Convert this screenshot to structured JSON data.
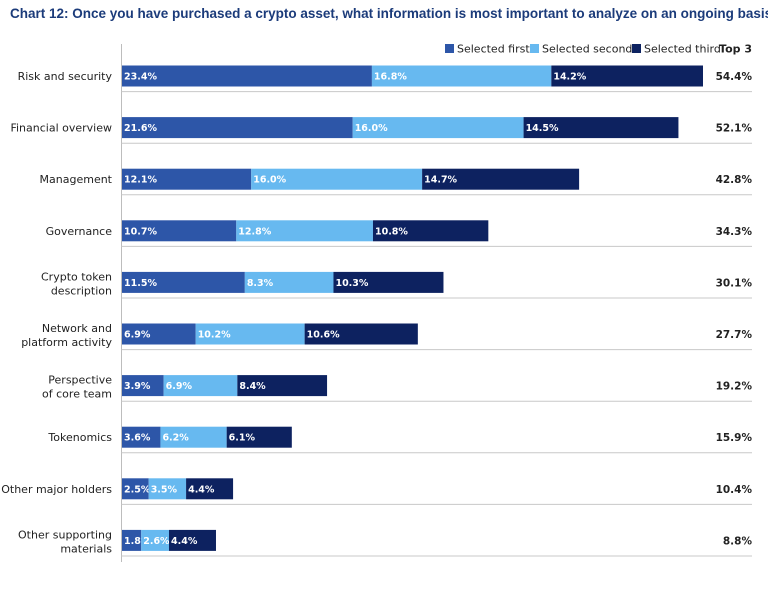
{
  "chart_data": {
    "type": "bar",
    "orientation": "horizontal",
    "stacked": true,
    "title": "Chart 12: Once you have purchased a crypto asset, what information is most important to analyze on an ongoing basis?",
    "categories": [
      [
        "Risk and security"
      ],
      [
        "Financial overview"
      ],
      [
        "Management"
      ],
      [
        "Governance"
      ],
      [
        "Crypto token",
        "description"
      ],
      [
        "Network and",
        "platform activity"
      ],
      [
        "Perspective",
        "of core team"
      ],
      [
        "Tokenomics"
      ],
      [
        "Other major holders"
      ],
      [
        "Other supporting",
        "materials"
      ]
    ],
    "series": [
      {
        "name": "Selected first",
        "color": "#2d56a8",
        "values": [
          23.4,
          21.6,
          12.1,
          10.7,
          11.5,
          6.9,
          3.9,
          3.6,
          2.5,
          1.8
        ]
      },
      {
        "name": "Selected second",
        "color": "#67b9f0",
        "values": [
          16.8,
          16.0,
          16.0,
          12.8,
          8.3,
          10.2,
          6.9,
          6.2,
          3.5,
          2.6
        ]
      },
      {
        "name": "Selected third",
        "color": "#0d2260",
        "values": [
          14.2,
          14.5,
          14.7,
          10.8,
          10.3,
          10.6,
          8.4,
          6.1,
          4.4,
          4.4
        ]
      }
    ],
    "top3_header": "Top 3",
    "top3": [
      54.4,
      52.1,
      42.8,
      34.3,
      30.1,
      27.7,
      19.2,
      15.9,
      10.4,
      8.8
    ],
    "value_suffix": "%",
    "legend_position": "top-right",
    "xlim": [
      0,
      55
    ],
    "grid": false
  }
}
